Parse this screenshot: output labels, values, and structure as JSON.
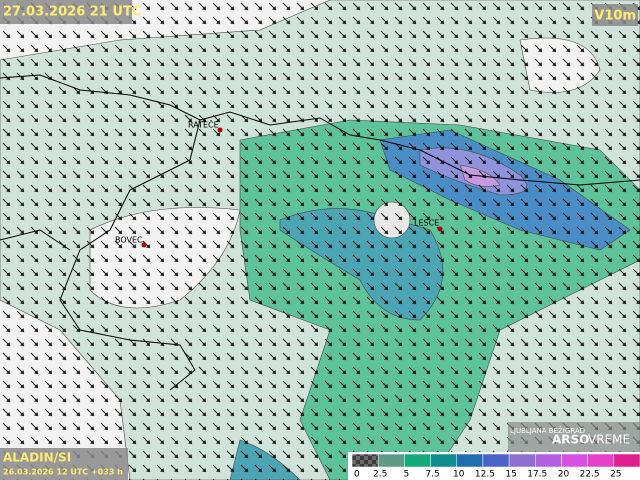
{
  "header": {
    "time": "27.03.2026 21 UTC",
    "variable": "V10m"
  },
  "places": [
    "RATEČE",
    "BOVEC",
    "LESCE"
  ],
  "footer": {
    "model": "ALADIN/SI",
    "run": "26.03.2026 12 UTC +033 h",
    "station": "LJUBLJANA BEŽIGRAD",
    "arso": "ARSO",
    "vreme": "VREME"
  },
  "legend": {
    "colors": [
      "#5a5a5a",
      "#5e9a86",
      "#16a97a",
      "#0f8c8c",
      "#1f6fb0",
      "#4a63c8",
      "#8c6fd0",
      "#b25fe0",
      "#d84fe6",
      "#e63fc8",
      "#e01e90"
    ],
    "ticks": [
      0,
      2.5,
      5,
      7.5,
      10,
      12.5,
      15,
      17.5,
      20,
      22.5,
      25
    ]
  }
}
